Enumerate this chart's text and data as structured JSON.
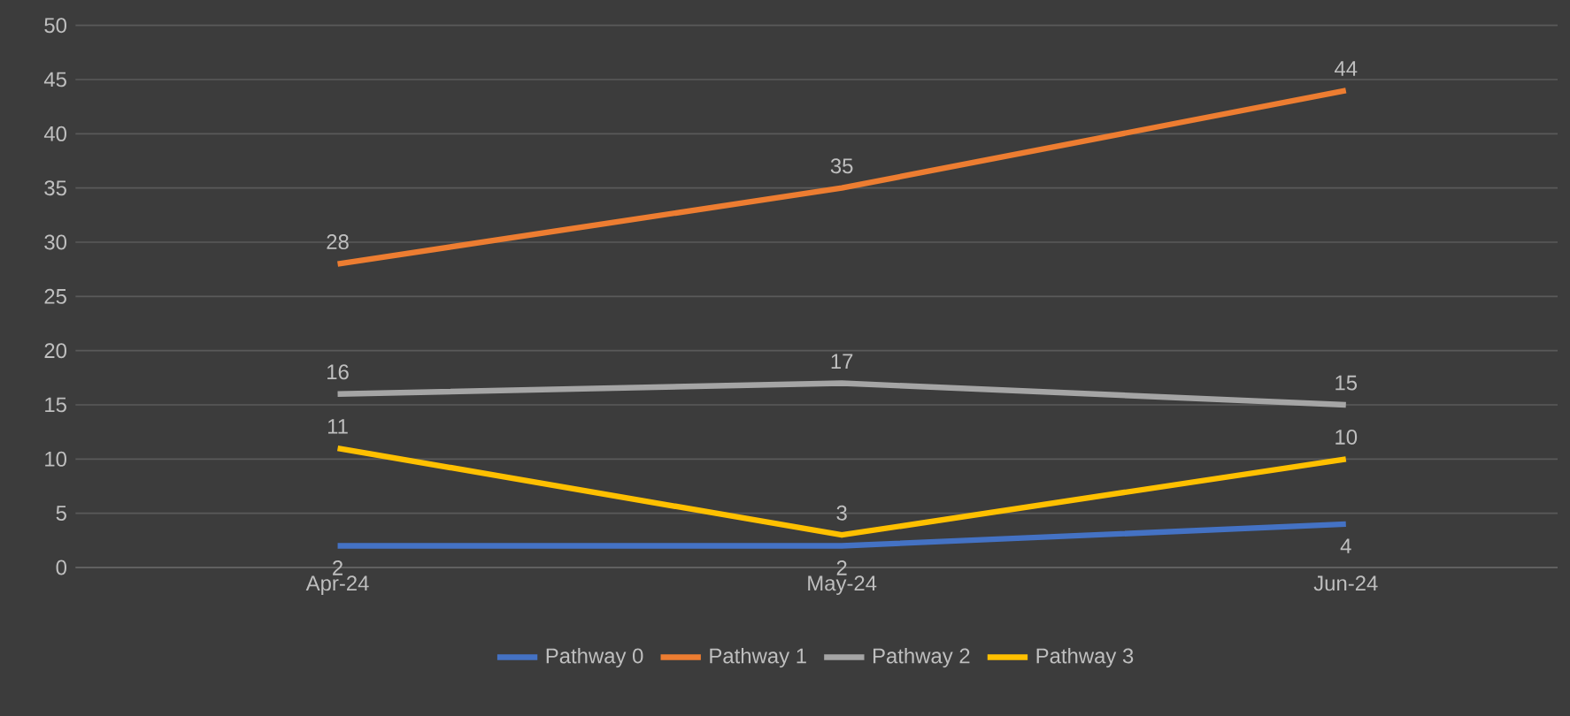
{
  "chart_data": {
    "type": "line",
    "categories": [
      "Apr-24",
      "May-24",
      "Jun-24"
    ],
    "series": [
      {
        "name": "Pathway 0",
        "color": "#4472c4",
        "values": [
          2,
          2,
          4
        ]
      },
      {
        "name": "Pathway 1",
        "color": "#ed7d31",
        "values": [
          28,
          35,
          44
        ]
      },
      {
        "name": "Pathway 2",
        "color": "#a5a5a5",
        "values": [
          16,
          17,
          15
        ]
      },
      {
        "name": "Pathway 3",
        "color": "#ffc000",
        "values": [
          11,
          3,
          10
        ]
      }
    ],
    "ylim": [
      0,
      50
    ],
    "yticks": [
      0,
      5,
      10,
      15,
      20,
      25,
      30,
      35,
      40,
      45,
      50
    ],
    "grid": "y",
    "legend": "bottom",
    "data_labels": true
  }
}
